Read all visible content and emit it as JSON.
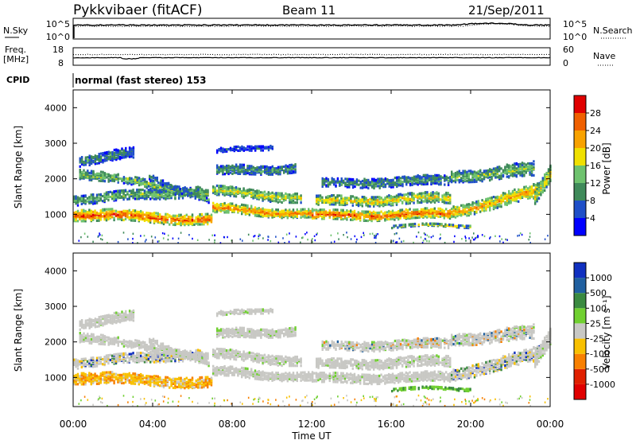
{
  "header": {
    "station": "Pykkvibaer (fitACF)",
    "beam": "Beam 11",
    "date": "21/Sep/2011"
  },
  "noise_panel": {
    "left_label": "N.Sky",
    "left_ticks": [
      "10^5",
      "10^0"
    ],
    "right_label": "N.Search",
    "right_ticks": [
      "10^5",
      "10^0"
    ]
  },
  "freq_panel": {
    "left_label_1": "Freq.",
    "left_label_2": "[MHz]",
    "left_ticks": [
      "18",
      "8"
    ],
    "right_label": "Nave",
    "right_ticks": [
      "60",
      "0"
    ]
  },
  "cpid": {
    "label": "CPID",
    "value": "normal (fast stereo) 153"
  },
  "chart_data": [
    {
      "type": "heatmap",
      "name": "power",
      "ylabel": "Slant Range [km]",
      "yticks": [
        1000,
        2000,
        3000,
        4000
      ],
      "ylim": [
        180,
        4500
      ],
      "xlim_hours": [
        0,
        24
      ],
      "colorbar_label": "Power [dB]",
      "colorbar_ticks": [
        "28",
        "24",
        "20",
        "16",
        "12",
        "8",
        "4"
      ],
      "colors": [
        "#0000ff",
        "#1f4fc8",
        "#3f8a5a",
        "#6ec26e",
        "#f0e000",
        "#f8a200",
        "#f06000",
        "#e00000"
      ]
    },
    {
      "type": "heatmap",
      "name": "velocity",
      "ylabel": "Slant Range [km]",
      "yticks": [
        1000,
        2000,
        3000,
        4000
      ],
      "ylim": [
        180,
        4500
      ],
      "xlim_hours": [
        0,
        24
      ],
      "colorbar_label": "Velocity [m s⁻¹]",
      "colorbar_ticks": [
        "1000",
        "500",
        "100",
        "25",
        "-25",
        "-100",
        "-500",
        "-1000"
      ],
      "colors": [
        "#1030c0",
        "#2060a0",
        "#3a8a40",
        "#70d030",
        "#c8c8c4",
        "#f8c000",
        "#f88000",
        "#e02000",
        "#e00000"
      ]
    }
  ],
  "x_axis": {
    "ticks": [
      "00:00",
      "04:00",
      "08:00",
      "12:00",
      "16:00",
      "20:00",
      "00:00"
    ],
    "label": "Time UT"
  }
}
